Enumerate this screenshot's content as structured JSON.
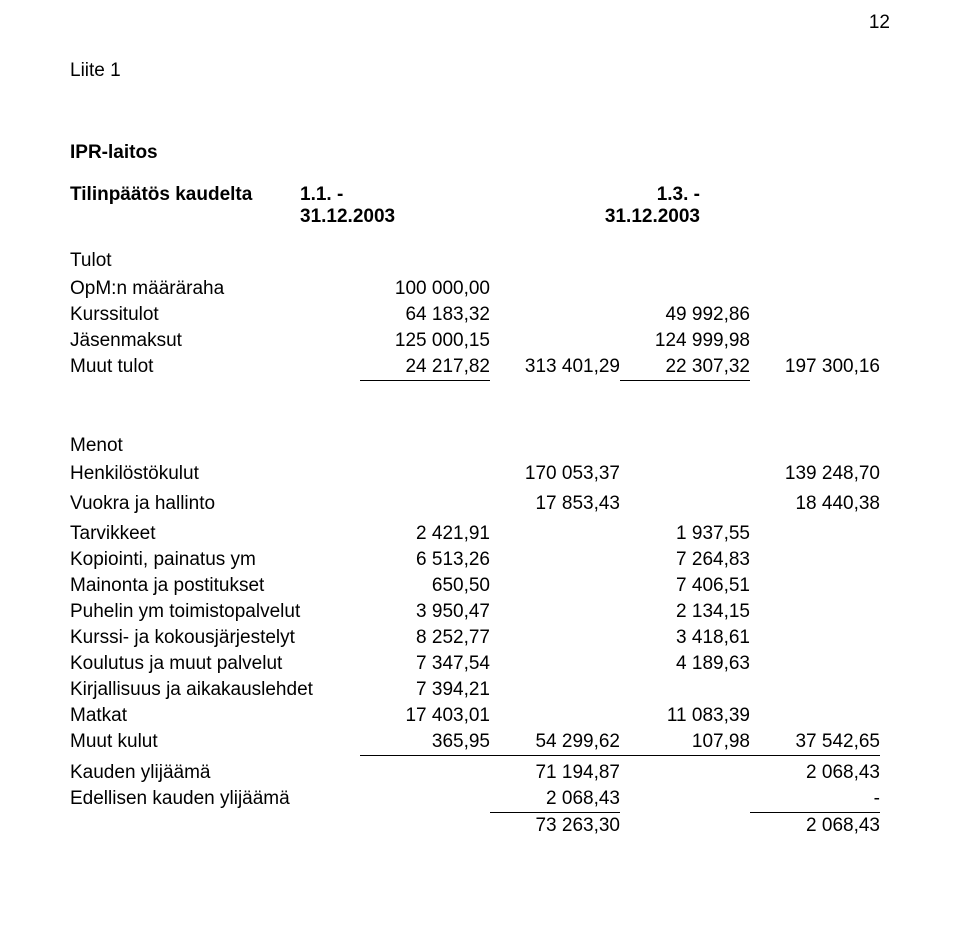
{
  "page_number": "12",
  "appendix": "Liite 1",
  "org": "IPR-laitos",
  "heading": {
    "title": "Tilinpäätös kaudelta",
    "period1": "1.1. - 31.12.2003",
    "period2": "1.3. - 31.12.2003"
  },
  "income": {
    "title": "Tulot",
    "rows": [
      {
        "label": "OpM:n määräraha",
        "a": "100 000,00",
        "b": "",
        "c": "",
        "d": ""
      },
      {
        "label": "Kurssitulot",
        "a": "64 183,32",
        "b": "",
        "c": "49 992,86",
        "d": ""
      },
      {
        "label": "Jäsenmaksut",
        "a": "125 000,15",
        "b": "",
        "c": "124 999,98",
        "d": ""
      },
      {
        "label": "Muut tulot",
        "a": "24 217,82",
        "b": "313 401,29",
        "c": "22 307,32",
        "d": "197 300,16",
        "underline_a": true,
        "underline_c": true
      }
    ]
  },
  "expenses": {
    "title": "Menot",
    "personnel": {
      "label": "Henkilöstökulut",
      "b": "170 053,37",
      "d": "139 248,70"
    },
    "rent": {
      "label": "Vuokra ja hallinto",
      "b": "17 853,43",
      "d": "18 440,38"
    },
    "rows": [
      {
        "label": "Tarvikkeet",
        "a": "2 421,91",
        "c": "1 937,55"
      },
      {
        "label": "Kopiointi, painatus ym",
        "a": "6 513,26",
        "c": "7 264,83"
      },
      {
        "label": "Mainonta ja postitukset",
        "a": "650,50",
        "c": "7 406,51"
      },
      {
        "label": "Puhelin ym toimistopalvelut",
        "a": "3 950,47",
        "c": "2 134,15"
      },
      {
        "label": "Kurssi- ja kokousjärjestelyt",
        "a": "8 252,77",
        "c": "3 418,61"
      },
      {
        "label": "Koulutus ja muut palvelut",
        "a": "7 347,54",
        "c": "4 189,63"
      },
      {
        "label": "Kirjallisuus ja aikakauslehdet",
        "a": "7 394,21",
        "c": ""
      },
      {
        "label": "Matkat",
        "a": "17 403,01",
        "c": "11 083,39"
      },
      {
        "label": "Muut kulut",
        "a": "365,95",
        "b": "54 299,62",
        "c": "107,98",
        "d": "37 542,65",
        "underline_a": true,
        "underline_b": true,
        "underline_c": true,
        "underline_d": true
      }
    ]
  },
  "footer": {
    "surplus": {
      "label": "Kauden ylijäämä",
      "b": "71 194,87",
      "d": "2 068,43"
    },
    "prev": {
      "label": "Edellisen kauden ylijäämä",
      "b": "2 068,43",
      "d": "-",
      "underline_b": true,
      "underline_d": true
    },
    "total": {
      "label": "",
      "b": "73 263,30",
      "d": "2 068,43"
    }
  }
}
